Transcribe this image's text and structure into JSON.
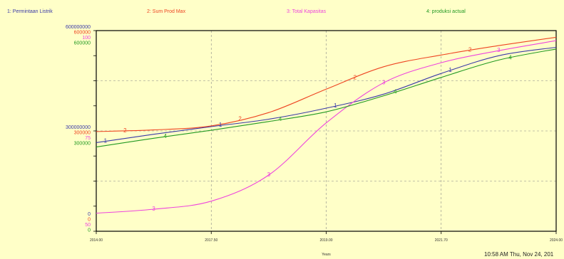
{
  "window": {
    "timestamp": "10:58 AM  Thu, Nov 24, 201"
  },
  "chart_data": {
    "type": "line",
    "xlabel": "Years",
    "x_ticks": [
      "2014.00",
      "2017.50",
      "2019.00",
      "2021.70",
      "2024.00"
    ],
    "xlim": [
      0,
      4
    ],
    "grid": true,
    "colors": {
      "series1": "#3a3aa8",
      "series2": "#ee4422",
      "series3": "#ee44dd",
      "series4": "#229922"
    },
    "series": [
      {
        "name": "1: Permintaan Listrik",
        "axis": {
          "top": "600000000",
          "mid": "300000000",
          "bottom": "0"
        },
        "ylim": [
          0,
          600000000
        ],
        "x": [
          0,
          0.5,
          1,
          1.5,
          2,
          2.5,
          3,
          3.5,
          4
        ],
        "values": [
          265000000,
          290000000,
          313000000,
          335000000,
          368000000,
          410000000,
          472000000,
          525000000,
          550000000
        ]
      },
      {
        "name": "2: Sum Prod Max",
        "axis": {
          "top": "600000",
          "mid": "300000",
          "bottom": "0"
        },
        "ylim": [
          0,
          600000
        ],
        "x": [
          0,
          0.5,
          1,
          1.5,
          2,
          2.5,
          3,
          3.5,
          4
        ],
        "values": [
          298000,
          303000,
          315000,
          355000,
          425000,
          492000,
          527000,
          555000,
          580000
        ]
      },
      {
        "name": "3: Total Kapasitas",
        "axis": {
          "top": "100",
          "mid": "75",
          "bottom": "50"
        },
        "ylim": [
          50,
          100
        ],
        "x": [
          0,
          0.5,
          1,
          1.5,
          2,
          2.5,
          3,
          3.5,
          4
        ],
        "values": [
          54.5,
          55.5,
          57.5,
          64,
          77,
          87,
          92,
          95,
          97.5
        ]
      },
      {
        "name": "4: produksi actual",
        "axis": {
          "top": "600000",
          "mid": "300000",
          "bottom": "0"
        },
        "ylim": [
          0,
          600000
        ],
        "x": [
          0,
          0.5,
          1,
          1.5,
          2,
          2.5,
          3,
          3.5,
          4
        ],
        "values": [
          252000,
          278000,
          302000,
          328000,
          357000,
          405000,
          460000,
          512000,
          545000
        ]
      }
    ]
  }
}
